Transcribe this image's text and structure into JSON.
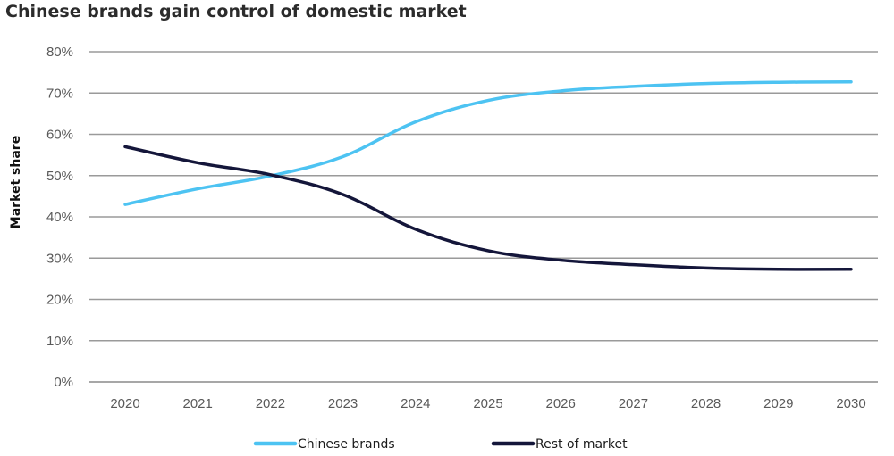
{
  "chart_data": {
    "type": "line",
    "title": "Chinese brands gain control of domestic market",
    "xlabel": "",
    "ylabel": "Market share",
    "x": [
      "2020",
      "2021",
      "2022",
      "2023",
      "2024",
      "2025",
      "2026",
      "2027",
      "2028",
      "2029",
      "2030"
    ],
    "ylim": [
      0,
      80
    ],
    "yticks": [
      0,
      10,
      20,
      30,
      40,
      50,
      60,
      70,
      80
    ],
    "ytick_labels": [
      "0%",
      "10%",
      "20%",
      "30%",
      "40%",
      "50%",
      "60%",
      "70%",
      "80%"
    ],
    "grid": true,
    "legend_position": "bottom",
    "series": [
      {
        "name": "Chinese brands",
        "color": "#4dc3f2",
        "values": [
          43,
          46.8,
          49.9,
          54.6,
          63,
          68.2,
          70.5,
          71.6,
          72.3,
          72.6,
          72.7
        ]
      },
      {
        "name": "Rest of market",
        "color": "#14163a",
        "values": [
          57,
          53.1,
          50.2,
          45.4,
          37,
          31.8,
          29.5,
          28.4,
          27.6,
          27.3,
          27.3
        ]
      }
    ]
  }
}
